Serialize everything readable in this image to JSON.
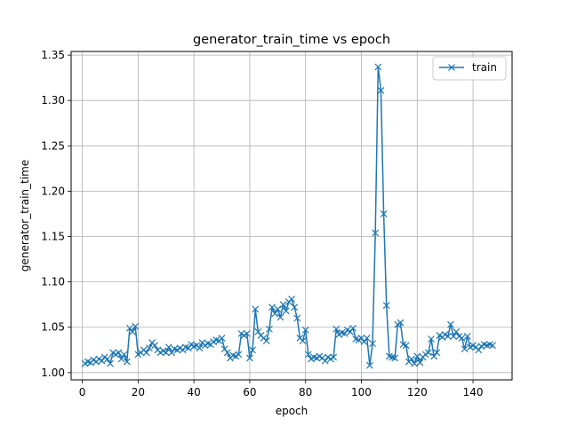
{
  "chart_data": {
    "type": "line",
    "title": "generator_train_time vs epoch",
    "xlabel": "epoch",
    "ylabel": "generator_train_time",
    "xlim": [
      -4,
      154
    ],
    "ylim": [
      0.992,
      1.354
    ],
    "xticks": [
      0,
      20,
      40,
      60,
      80,
      100,
      120,
      140
    ],
    "yticks": [
      1.0,
      1.05,
      1.1,
      1.15,
      1.2,
      1.25,
      1.3,
      1.35
    ],
    "ytick_format": 2,
    "grid": true,
    "legend_position": "top-right",
    "series": [
      {
        "name": "train",
        "color": "#1f77b4",
        "marker": "x",
        "x": [
          1,
          2,
          3,
          4,
          5,
          6,
          7,
          8,
          9,
          10,
          11,
          12,
          13,
          14,
          15,
          16,
          17,
          18,
          19,
          20,
          21,
          22,
          23,
          24,
          25,
          26,
          27,
          28,
          29,
          30,
          31,
          32,
          33,
          34,
          35,
          36,
          37,
          38,
          39,
          40,
          41,
          42,
          43,
          44,
          45,
          46,
          47,
          48,
          49,
          50,
          51,
          52,
          53,
          54,
          55,
          56,
          57,
          58,
          59,
          60,
          61,
          62,
          63,
          64,
          65,
          66,
          67,
          68,
          69,
          70,
          71,
          72,
          73,
          74,
          75,
          76,
          77,
          78,
          79,
          80,
          81,
          82,
          83,
          84,
          85,
          86,
          87,
          88,
          89,
          90,
          91,
          92,
          93,
          94,
          95,
          96,
          97,
          98,
          99,
          100,
          101,
          102,
          103,
          104,
          105,
          106,
          107,
          108,
          109,
          110,
          111,
          112,
          113,
          114,
          115,
          116,
          117,
          118,
          119,
          120,
          121,
          122,
          123,
          124,
          125,
          126,
          127,
          128,
          129,
          130,
          131,
          132,
          133,
          134,
          135,
          136,
          137,
          138,
          139,
          140,
          141,
          142,
          143,
          144,
          145,
          146,
          147
        ],
        "y": [
          1.01,
          1.012,
          1.011,
          1.014,
          1.012,
          1.015,
          1.013,
          1.017,
          1.015,
          1.01,
          1.022,
          1.02,
          1.022,
          1.015,
          1.02,
          1.012,
          1.049,
          1.045,
          1.051,
          1.02,
          1.022,
          1.025,
          1.022,
          1.027,
          1.033,
          1.03,
          1.025,
          1.022,
          1.024,
          1.022,
          1.028,
          1.022,
          1.026,
          1.025,
          1.027,
          1.025,
          1.028,
          1.027,
          1.031,
          1.029,
          1.03,
          1.027,
          1.033,
          1.03,
          1.032,
          1.031,
          1.034,
          1.036,
          1.035,
          1.038,
          1.026,
          1.022,
          1.016,
          1.019,
          1.018,
          1.02,
          1.043,
          1.041,
          1.043,
          1.016,
          1.025,
          1.07,
          1.045,
          1.041,
          1.038,
          1.035,
          1.048,
          1.072,
          1.065,
          1.07,
          1.061,
          1.075,
          1.068,
          1.078,
          1.081,
          1.072,
          1.06,
          1.038,
          1.035,
          1.047,
          1.02,
          1.015,
          1.017,
          1.016,
          1.018,
          1.016,
          1.013,
          1.017,
          1.015,
          1.017,
          1.048,
          1.042,
          1.044,
          1.043,
          1.047,
          1.045,
          1.049,
          1.037,
          1.036,
          1.038,
          1.034,
          1.038,
          1.008,
          1.032,
          1.154,
          1.337,
          1.311,
          1.175,
          1.074,
          1.018,
          1.017,
          1.016,
          1.053,
          1.055,
          1.031,
          1.03,
          1.012,
          1.015,
          1.01,
          1.018,
          1.011,
          1.017,
          1.02,
          1.022,
          1.037,
          1.018,
          1.022,
          1.041,
          1.039,
          1.042,
          1.04,
          1.053,
          1.04,
          1.045,
          1.04,
          1.038,
          1.026,
          1.04,
          1.028,
          1.03,
          1.028,
          1.025,
          1.029,
          1.031,
          1.03,
          1.031,
          1.03
        ]
      }
    ]
  }
}
